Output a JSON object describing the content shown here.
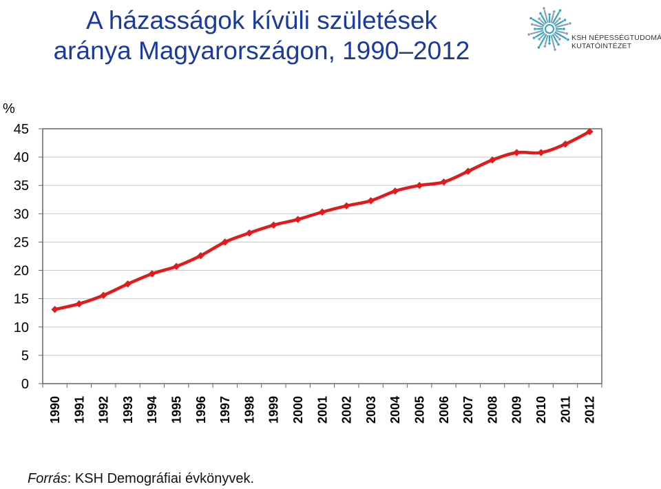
{
  "title": {
    "line1": "A házasságok kívüli születések",
    "line2": "aránya Magyarországon, 1990–2012"
  },
  "logo": {
    "org_line1": "KSH NÉPESSÉGTUDOMÁNYI",
    "org_line2": "KUTATÓINTÉZET",
    "accent_color": "#2aa6c7"
  },
  "source": {
    "label": "Forrás",
    "text": ": KSH Demográfiai évkönyvek."
  },
  "chart_data": {
    "type": "line",
    "ylabel": "%",
    "xlabel": "",
    "ylim": [
      0,
      45
    ],
    "yticks": [
      0,
      5,
      10,
      15,
      20,
      25,
      30,
      35,
      40,
      45
    ],
    "grid": true,
    "legend": "none",
    "line_color": "#e31a1c",
    "categories": [
      "1990",
      "1991",
      "1992",
      "1993",
      "1994",
      "1995",
      "1996",
      "1997",
      "1998",
      "1999",
      "2000",
      "2001",
      "2002",
      "2003",
      "2004",
      "2005",
      "2006",
      "2007",
      "2008",
      "2009",
      "2010",
      "2011",
      "2012"
    ],
    "series": [
      {
        "values": [
          13.1,
          14.1,
          15.6,
          17.6,
          19.4,
          20.7,
          22.6,
          25.0,
          26.6,
          28.0,
          29.0,
          30.3,
          31.4,
          32.3,
          34.0,
          35.0,
          35.6,
          37.5,
          39.5,
          40.8,
          40.8,
          42.3,
          44.5
        ]
      }
    ]
  }
}
